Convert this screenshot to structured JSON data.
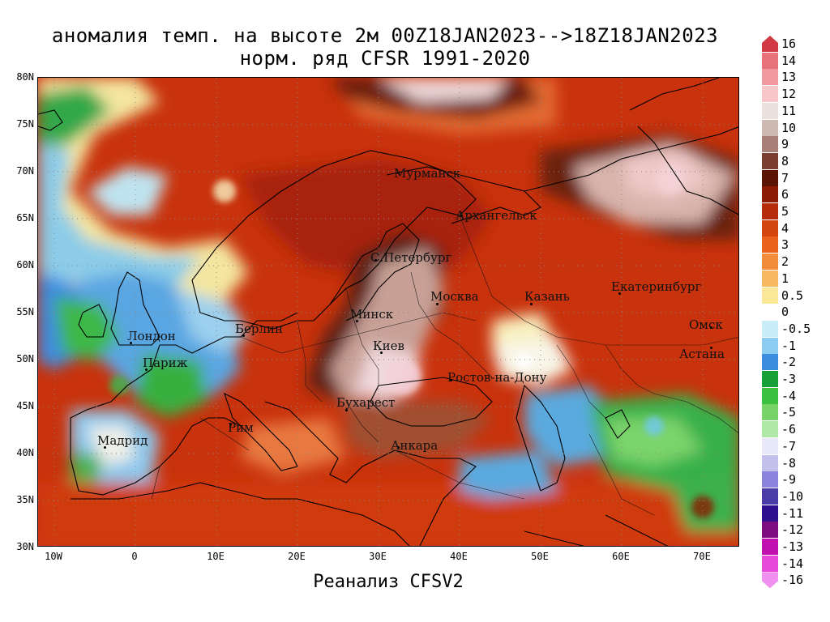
{
  "title": {
    "line1": "аномалия темп. на высоте 2м 00Z18JAN2023-->18Z18JAN2023",
    "line2": "норм. ряд CFSR 1991-2020"
  },
  "footer": "Реанализ CFSV2",
  "lat_labels": [
    "80N",
    "75N",
    "70N",
    "65N",
    "60N",
    "55N",
    "50N",
    "45N",
    "40N",
    "35N",
    "30N"
  ],
  "lon_labels": [
    "10W",
    "0",
    "10E",
    "20E",
    "30E",
    "40E",
    "50E",
    "60E",
    "70E"
  ],
  "cities": [
    {
      "name": "Мурманск"
    },
    {
      "name": "Архангельск"
    },
    {
      "name": "С.Петербург"
    },
    {
      "name": "Москва"
    },
    {
      "name": "Казань"
    },
    {
      "name": "Екатеринбург"
    },
    {
      "name": "Минск"
    },
    {
      "name": "Берлин"
    },
    {
      "name": "Лондон"
    },
    {
      "name": "Париж"
    },
    {
      "name": "Киев"
    },
    {
      "name": "Омск"
    },
    {
      "name": "Астана"
    },
    {
      "name": "Ростов-на-Дону"
    },
    {
      "name": "Бухарест"
    },
    {
      "name": "Рим"
    },
    {
      "name": "Мадрид"
    },
    {
      "name": "Анкара"
    }
  ],
  "colorbar": {
    "labels": [
      "16",
      "14",
      "13",
      "12",
      "11",
      "10",
      "9",
      "8",
      "7",
      "6",
      "5",
      "4",
      "3",
      "2",
      "1",
      "0.5",
      "0",
      "-0.5",
      "-1",
      "-2",
      "-3",
      "-4",
      "-5",
      "-6",
      "-7",
      "-8",
      "-9",
      "-10",
      "-11",
      "-12",
      "-13",
      "-14",
      "-16"
    ],
    "colors": [
      "#d13a45",
      "#e8727a",
      "#f09aa0",
      "#f6c6c8",
      "#ece0dc",
      "#cdb8b2",
      "#a88078",
      "#7a3e30",
      "#5a1404",
      "#8a1c06",
      "#b42c0a",
      "#d4440e",
      "#e8621e",
      "#f08c3c",
      "#f6b860",
      "#fae898",
      "#ffffff",
      "#c8ecf8",
      "#8cccf0",
      "#3c8ce0",
      "#18a038",
      "#3cc040",
      "#78d468",
      "#b0e8a8",
      "#e8e8f8",
      "#c4c0ec",
      "#8c84dc",
      "#4c3ca8",
      "#30108c",
      "#7c0c80",
      "#c010b0",
      "#e848d8",
      "#f090f0"
    ]
  }
}
